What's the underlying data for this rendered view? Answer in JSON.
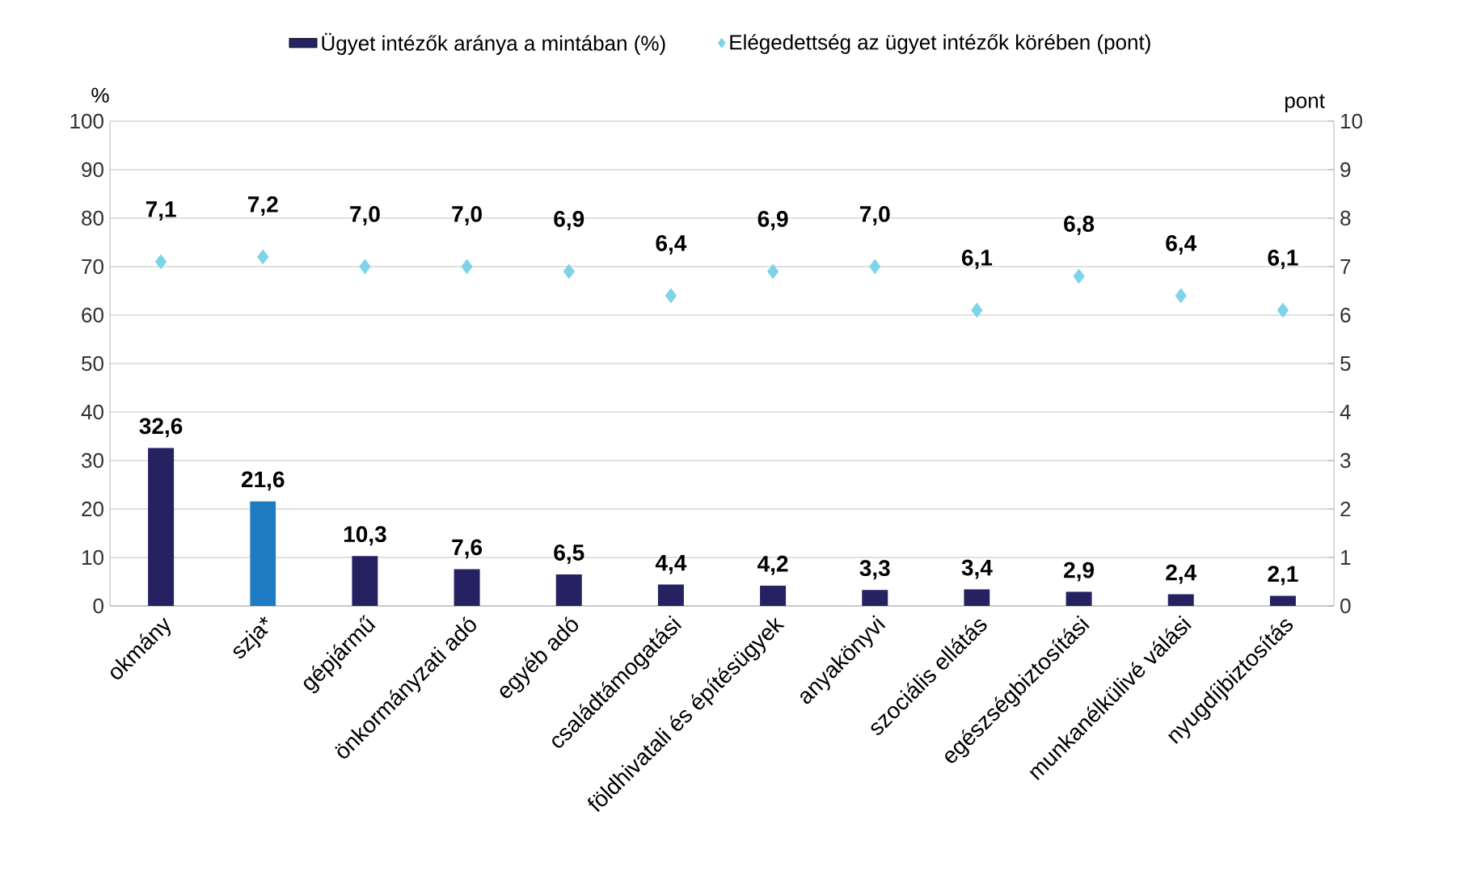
{
  "chart_data": {
    "type": "bar",
    "categories": [
      "okmány",
      "szja*",
      "gépjármű",
      "önkormányzati adó",
      "egyéb adó",
      "családtámogatási",
      "földhivatali és építésügyek",
      "anyakönyvi",
      "szociális ellátás",
      "egészségbiztosítási",
      "munkanélkülivé válási",
      "nyugdíjbiztosítás"
    ],
    "series": [
      {
        "name": "Ügyet intézők aránya a mintában (%)",
        "colors": [
          "#262262",
          "#1f7bc1",
          "#262262",
          "#262262",
          "#262262",
          "#262262",
          "#262262",
          "#262262",
          "#262262",
          "#262262",
          "#262262",
          "#262262"
        ],
        "values": [
          32.6,
          21.6,
          10.3,
          7.6,
          6.5,
          4.4,
          4.2,
          3.3,
          3.4,
          2.9,
          2.4,
          2.1
        ],
        "value_labels": [
          "32,6",
          "21,6",
          "10,3",
          "7,6",
          "6,5",
          "4,4",
          "4,2",
          "3,3",
          "3,4",
          "2,9",
          "2,4",
          "2,1"
        ]
      },
      {
        "name": "Elégedettség az ügyet intézők körében (pont)",
        "type": "scatter",
        "axis": "y2",
        "color": "#7fd3e8",
        "marker": "diamond",
        "values": [
          7.1,
          7.2,
          7.0,
          7.0,
          6.9,
          6.4,
          6.9,
          7.0,
          6.1,
          6.8,
          6.4,
          6.1
        ],
        "value_labels": [
          "7,1",
          "7,2",
          "7,0",
          "7,0",
          "6,9",
          "6,4",
          "6,9",
          "7,0",
          "6,1",
          "6,8",
          "6,4",
          "6,1"
        ]
      }
    ],
    "ylabel": "%",
    "y2label": "pont",
    "ylim": [
      0,
      100
    ],
    "yticks": [
      0,
      10,
      20,
      30,
      40,
      50,
      60,
      70,
      80,
      90,
      100
    ],
    "y2lim": [
      0,
      10
    ],
    "y2ticks": [
      0,
      1,
      2,
      3,
      4,
      5,
      6,
      7,
      8,
      9,
      10
    ],
    "grid": "y",
    "legend": "top"
  }
}
